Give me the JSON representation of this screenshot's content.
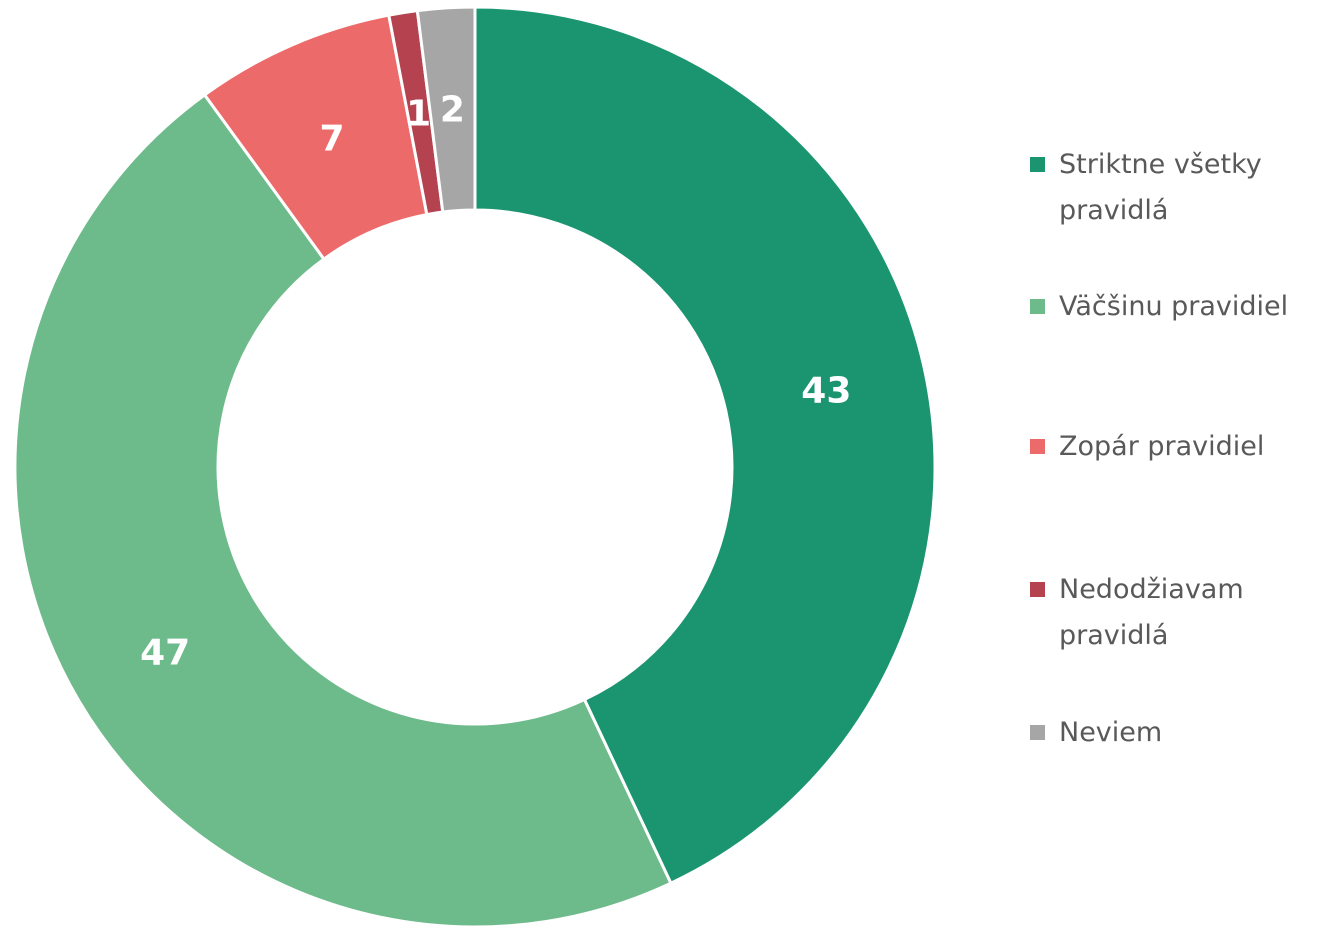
{
  "chart_data": {
    "type": "donut",
    "categories": [
      "Striktne všetky pravidlá",
      "Väčšinu pravidiel",
      "Zopár pravidiel",
      "Nedodžiavam pravidlá",
      "Neviem"
    ],
    "values": [
      43,
      47,
      7,
      1,
      2
    ],
    "colors": [
      "#1a9570",
      "#6dba8b",
      "#ec6b6a",
      "#b5424f",
      "#a6a6a6"
    ],
    "legend": "right"
  }
}
